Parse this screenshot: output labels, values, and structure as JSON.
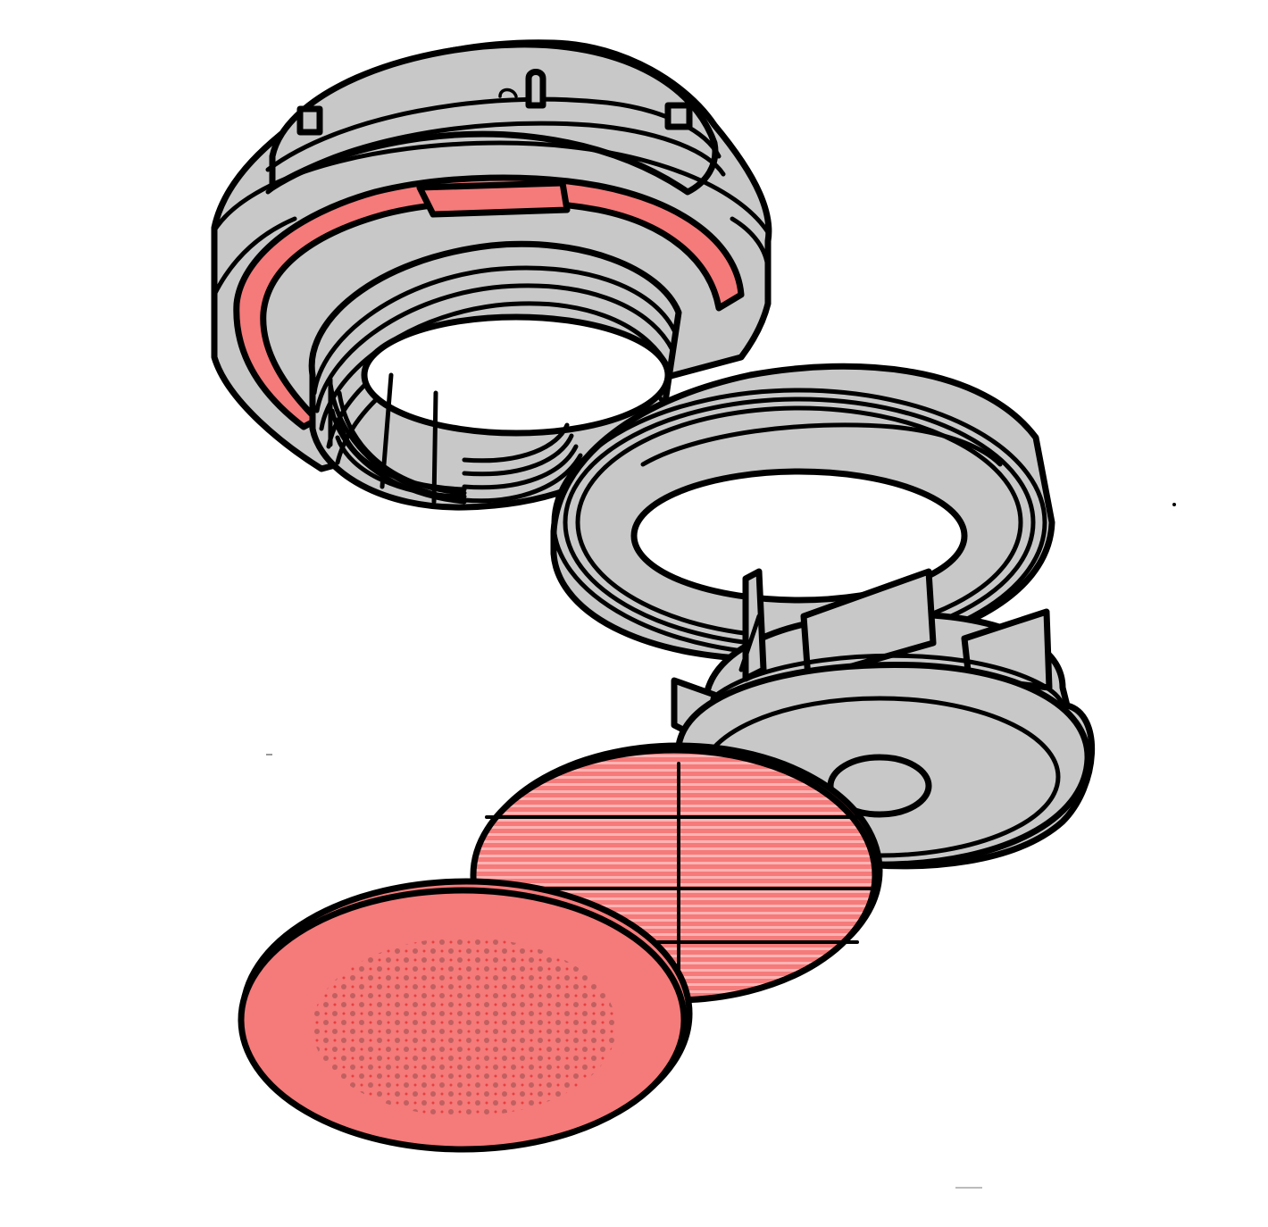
{
  "colors": {
    "body_gray": "#c8c8c8",
    "gasket_red": "#f57a7a",
    "outline": "#000000",
    "background": "#ffffff",
    "mesh_stripe": "#ffb3b3",
    "perforation": "#e64040"
  }
}
